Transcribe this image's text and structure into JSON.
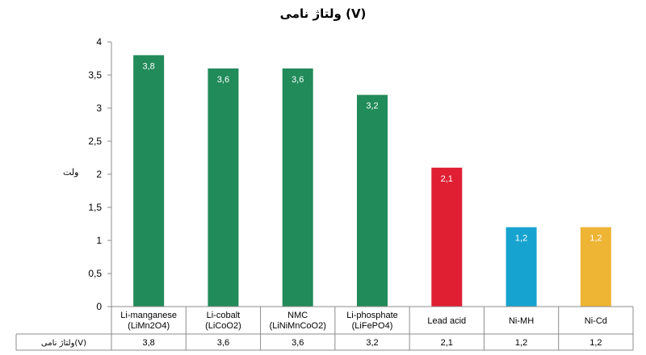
{
  "chart_data": {
    "type": "bar",
    "title": "ولتاژ نامی (V)",
    "ylabel": "ولت",
    "ylim": [
      0,
      4
    ],
    "yticks": [
      "0",
      "0,5",
      "1",
      "1,5",
      "2",
      "2,5",
      "3",
      "3,5",
      "4"
    ],
    "grid": false,
    "categories": [
      [
        "Li-manganese",
        "(LiMn2O4)"
      ],
      [
        "Li-cobalt",
        "(LiCoO2)"
      ],
      [
        "NMC",
        "(LiNiMnCoO2)"
      ],
      [
        "Li-phosphate",
        "(LiFePO4)"
      ],
      [
        "Lead acid"
      ],
      [
        "Ni-MH"
      ],
      [
        "Ni-Cd"
      ]
    ],
    "values": [
      3.8,
      3.6,
      3.6,
      3.2,
      2.1,
      1.2,
      1.2
    ],
    "value_labels": [
      "3,8",
      "3,6",
      "3,6",
      "3,2",
      "2,1",
      "1,2",
      "1,2"
    ],
    "colors": [
      "#218b5a",
      "#218b5a",
      "#218b5a",
      "#218b5a",
      "#e01f33",
      "#17a3cf",
      "#eeb434"
    ],
    "data_table": {
      "row_header": "ولتاژ نامی(V)",
      "cells": [
        "3,8",
        "3,6",
        "3,6",
        "3,2",
        "2,1",
        "1,2",
        "1,2"
      ]
    }
  }
}
